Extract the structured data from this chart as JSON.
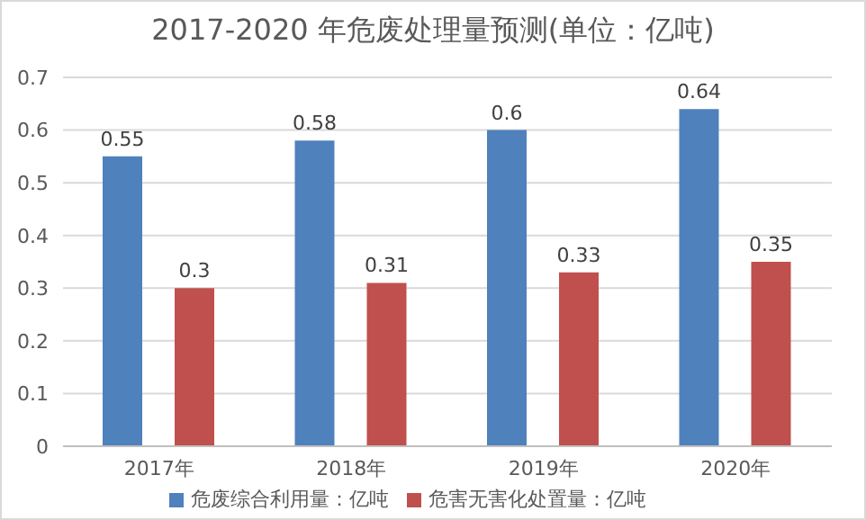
{
  "chart_data": {
    "type": "bar",
    "title": "2017-2020 年危废处理量预测(单位：亿吨)",
    "categories": [
      "2017年",
      "2018年",
      "2019年",
      "2020年"
    ],
    "series": [
      {
        "name": "危废综合利用量：亿吨",
        "color": "#4f81bd",
        "values": [
          0.55,
          0.58,
          0.6,
          0.64
        ]
      },
      {
        "name": "危害无害化处置量：亿吨",
        "color": "#c0504d",
        "values": [
          0.3,
          0.31,
          0.33,
          0.35
        ]
      }
    ],
    "ylim": [
      0,
      0.7
    ],
    "yticks": [
      0,
      0.1,
      0.2,
      0.3,
      0.4,
      0.5,
      0.6,
      0.7
    ],
    "grid": "y",
    "legend": "bottom",
    "data_labels": true
  }
}
